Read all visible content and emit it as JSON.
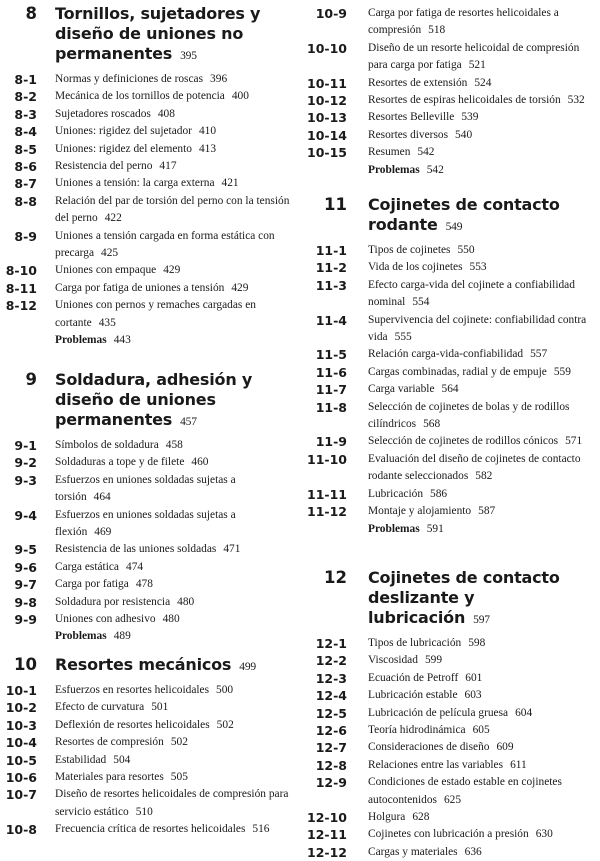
{
  "columns": [
    [
      {
        "number": "8",
        "title": "Tornillos, sujetadores y diseño de uniones no permanentes",
        "page": "395",
        "entries": [
          {
            "n": "8-1",
            "t": "Normas y definiciones de roscas",
            "p": "396"
          },
          {
            "n": "8-2",
            "t": "Mecánica de los tornillos de potencia",
            "p": "400"
          },
          {
            "n": "8-3",
            "t": "Sujetadores roscados",
            "p": "408"
          },
          {
            "n": "8-4",
            "t": "Uniones: rigidez del sujetador",
            "p": "410"
          },
          {
            "n": "8-5",
            "t": "Uniones: rigidez del elemento",
            "p": "413"
          },
          {
            "n": "8-6",
            "t": "Resistencia del perno",
            "p": "417"
          },
          {
            "n": "8-7",
            "t": "Uniones a tensión: la carga externa",
            "p": "421"
          },
          {
            "n": "8-8",
            "t": "Relación del par de torsión del perno con la tensión del perno",
            "p": "422"
          },
          {
            "n": "8-9",
            "t": "Uniones a tensión cargada en forma estática con precarga",
            "p": "425"
          },
          {
            "n": "8-10",
            "t": "Uniones con empaque",
            "p": "429"
          },
          {
            "n": "8-11",
            "t": "Carga por fatiga de uniones a tensión",
            "p": "429"
          },
          {
            "n": "8-12",
            "t": "Uniones con pernos y remaches cargadas en cortante",
            "p": "435"
          },
          {
            "n": "",
            "t": "Problemas",
            "p": "443",
            "problems": true
          }
        ]
      },
      {
        "number": "9",
        "title": "Soldadura, adhesión y diseño de uniones permanentes",
        "page": "457",
        "entries": [
          {
            "n": "9-1",
            "t": "Símbolos de soldadura",
            "p": "458"
          },
          {
            "n": "9-2",
            "t": "Soldaduras a tope y de filete",
            "p": "460"
          },
          {
            "n": "9-3",
            "t": "Esfuerzos en uniones soldadas sujetas a torsión",
            "p": "464"
          },
          {
            "n": "9-4",
            "t": "Esfuerzos en uniones soldadas sujetas a flexión",
            "p": "469"
          },
          {
            "n": "9-5",
            "t": "Resistencia de las uniones soldadas",
            "p": "471"
          },
          {
            "n": "9-6",
            "t": "Carga estática",
            "p": "474"
          },
          {
            "n": "9-7",
            "t": "Carga por fatiga",
            "p": "478"
          },
          {
            "n": "9-8",
            "t": "Soldadura por resistencia",
            "p": "480"
          },
          {
            "n": "9-9",
            "t": "Uniones con adhesivo",
            "p": "480"
          },
          {
            "n": "",
            "t": "Problemas",
            "p": "489",
            "problems": true
          }
        ]
      },
      {
        "number": "10",
        "title": "Resortes mecánicos",
        "page": "499",
        "entries": [
          {
            "n": "10-1",
            "t": "Esfuerzos en resortes helicoidales",
            "p": "500"
          },
          {
            "n": "10-2",
            "t": "Efecto de curvatura",
            "p": "501"
          },
          {
            "n": "10-3",
            "t": "Deflexión de resortes helicoidales",
            "p": "502"
          },
          {
            "n": "10-4",
            "t": "Resortes de compresión",
            "p": "502"
          },
          {
            "n": "10-5",
            "t": "Estabilidad",
            "p": "504"
          },
          {
            "n": "10-6",
            "t": "Materiales para resortes",
            "p": "505"
          },
          {
            "n": "10-7",
            "t": "Diseño de resortes helicoidales de compresión para servicio estático",
            "p": "510"
          },
          {
            "n": "10-8",
            "t": "Frecuencia crítica de resortes helicoidales",
            "p": "516"
          }
        ]
      }
    ],
    [
      {
        "entries": [
          {
            "n": "10-9",
            "t": "Carga por fatiga de resortes helicoidales a compresión",
            "p": "518"
          },
          {
            "n": "10-10",
            "t": "Diseño de un resorte helicoidal de compresión para carga por fatiga",
            "p": "521"
          },
          {
            "n": "10-11",
            "t": "Resortes de extensión",
            "p": "524"
          },
          {
            "n": "10-12",
            "t": "Resortes de espiras helicoidales de torsión",
            "p": "532"
          },
          {
            "n": "10-13",
            "t": "Resortes Belleville",
            "p": "539"
          },
          {
            "n": "10-14",
            "t": "Resortes diversos",
            "p": "540"
          },
          {
            "n": "10-15",
            "t": "Resumen",
            "p": "542"
          },
          {
            "n": "",
            "t": "Problemas",
            "p": "542",
            "problems": true
          }
        ]
      },
      {
        "number": "11",
        "title": "Cojinetes de contacto rodante",
        "page": "549",
        "entries": [
          {
            "n": "11-1",
            "t": "Tipos de cojinetes",
            "p": "550"
          },
          {
            "n": "11-2",
            "t": "Vida de los cojinetes",
            "p": "553"
          },
          {
            "n": "11-3",
            "t": "Efecto carga-vida del cojinete a confiabilidad nominal",
            "p": "554"
          },
          {
            "n": "11-4",
            "t": "Supervivencia del cojinete: confiabilidad contra vida",
            "p": "555"
          },
          {
            "n": "11-5",
            "t": "Relación carga-vida-confiabilidad",
            "p": "557"
          },
          {
            "n": "11-6",
            "t": "Cargas combinadas, radial y de empuje",
            "p": "559"
          },
          {
            "n": "11-7",
            "t": "Carga variable",
            "p": "564"
          },
          {
            "n": "11-8",
            "t": "Selección de cojinetes de bolas y de rodillos cilíndricos",
            "p": "568"
          },
          {
            "n": "11-9",
            "t": "Selección de cojinetes de rodillos cónicos",
            "p": "571"
          },
          {
            "n": "11-10",
            "t": "Evaluación del diseño de cojinetes de contacto rodante seleccionados",
            "p": "582"
          },
          {
            "n": "11-11",
            "t": "Lubricación",
            "p": "586"
          },
          {
            "n": "11-12",
            "t": "Montaje y alojamiento",
            "p": "587"
          },
          {
            "n": "",
            "t": "Problemas",
            "p": "591",
            "problems": true
          }
        ]
      },
      {
        "number": "12",
        "title": "Cojinetes de contacto deslizante y lubricación",
        "page": "597",
        "entries": [
          {
            "n": "12-1",
            "t": "Tipos de lubricación",
            "p": "598"
          },
          {
            "n": "12-2",
            "t": "Viscosidad",
            "p": "599"
          },
          {
            "n": "12-3",
            "t": "Ecuación de Petroff",
            "p": "601"
          },
          {
            "n": "12-4",
            "t": "Lubricación estable",
            "p": "603"
          },
          {
            "n": "12-5",
            "t": "Lubricación de película gruesa",
            "p": "604"
          },
          {
            "n": "12-6",
            "t": "Teoría hidrodinámica",
            "p": "605"
          },
          {
            "n": "12-7",
            "t": "Consideraciones de diseño",
            "p": "609"
          },
          {
            "n": "12-8",
            "t": "Relaciones entre las variables",
            "p": "611"
          },
          {
            "n": "12-9",
            "t": "Condiciones de estado estable en cojinetes autocontenidos",
            "p": "625"
          },
          {
            "n": "12-10",
            "t": "Holgura",
            "p": "628"
          },
          {
            "n": "12-11",
            "t": "Cojinetes con lubricación a presión",
            "p": "630"
          },
          {
            "n": "12-12",
            "t": "Cargas y materiales",
            "p": "636"
          }
        ]
      }
    ]
  ]
}
